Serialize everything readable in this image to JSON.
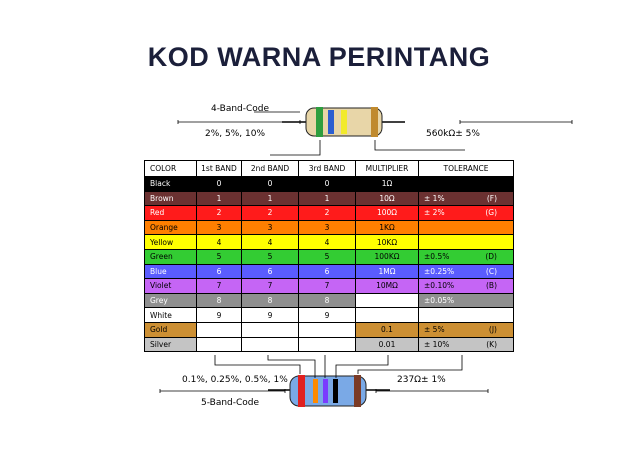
{
  "title": "KOD WARNA PERINTANG",
  "four_band": {
    "label": "4-Band-Code",
    "tolerance_options": "2%, 5%, 10%",
    "example": "560kΩ± 5%",
    "band_colors": [
      "#2e9e3e",
      "#2c5fd0",
      "#f2ea2a",
      "#c08a2e"
    ]
  },
  "five_band": {
    "label": "5-Band-Code",
    "tolerance_options": "0.1%, 0.25%, 0.5%, 1%",
    "example": "237Ω± 1%",
    "band_colors": [
      "#e02020",
      "#ff8a00",
      "#7a3cff",
      "#000000",
      "#7a3a26"
    ]
  },
  "table": {
    "headers": [
      "COLOR",
      "1st BAND",
      "2nd BAND",
      "3rd BAND",
      "MULTIPLIER",
      "TOLERANCE"
    ],
    "rows": [
      {
        "color": "Black",
        "b1": "0",
        "b2": "0",
        "b3": "0",
        "mult": "1Ω",
        "tol": "",
        "code": "",
        "bg": "#000000",
        "fg": "#ffffff"
      },
      {
        "color": "Brown",
        "b1": "1",
        "b2": "1",
        "b3": "1",
        "mult": "10Ω",
        "tol": "±   1%",
        "code": "(F)",
        "bg": "#6b3131",
        "fg": "#ffffff"
      },
      {
        "color": "Red",
        "b1": "2",
        "b2": "2",
        "b3": "2",
        "mult": "100Ω",
        "tol": "±   2%",
        "code": "(G)",
        "bg": "#ff1b1b",
        "fg": "#ffffff"
      },
      {
        "color": "Orange",
        "b1": "3",
        "b2": "3",
        "b3": "3",
        "mult": "1KΩ",
        "tol": "",
        "code": "",
        "bg": "#ff7f00",
        "fg": "#000000"
      },
      {
        "color": "Yellow",
        "b1": "4",
        "b2": "4",
        "b3": "4",
        "mult": "10KΩ",
        "tol": "",
        "code": "",
        "bg": "#ffff00",
        "fg": "#000000"
      },
      {
        "color": "Green",
        "b1": "5",
        "b2": "5",
        "b3": "5",
        "mult": "100KΩ",
        "tol": "±0.5%",
        "code": "(D)",
        "bg": "#33cc33",
        "fg": "#000000"
      },
      {
        "color": "Blue",
        "b1": "6",
        "b2": "6",
        "b3": "6",
        "mult": "1MΩ",
        "tol": "±0.25%",
        "code": "(C)",
        "bg": "#5a5cff",
        "fg": "#ffffff"
      },
      {
        "color": "Violet",
        "b1": "7",
        "b2": "7",
        "b3": "7",
        "mult": "10MΩ",
        "tol": "±0.10%",
        "code": "(B)",
        "bg": "#c565f5",
        "fg": "#000000"
      },
      {
        "color": "Grey",
        "b1": "8",
        "b2": "8",
        "b3": "8",
        "mult": "",
        "tol": "±0.05%",
        "code": "",
        "bg": "#8f8f8f",
        "fg": "#ffffff"
      },
      {
        "color": "White",
        "b1": "9",
        "b2": "9",
        "b3": "9",
        "mult": "",
        "tol": "",
        "code": "",
        "bg": "#ffffff",
        "fg": "#000000"
      },
      {
        "color": "Gold",
        "b1": "",
        "b2": "",
        "b3": "",
        "mult": "0.1",
        "tol": "±    5%",
        "code": "(J)",
        "bg": "#cc8f33",
        "fg": "#000000"
      },
      {
        "color": "Silver",
        "b1": "",
        "b2": "",
        "b3": "",
        "mult": "0.01",
        "tol": "±   10%",
        "code": "(K)",
        "bg": "#c4c4c4",
        "fg": "#000000"
      }
    ]
  },
  "colors": {
    "resistor_body_4": "#e8d6a8",
    "resistor_body_5": "#7aa9e6",
    "title": "#1b1f3a"
  }
}
